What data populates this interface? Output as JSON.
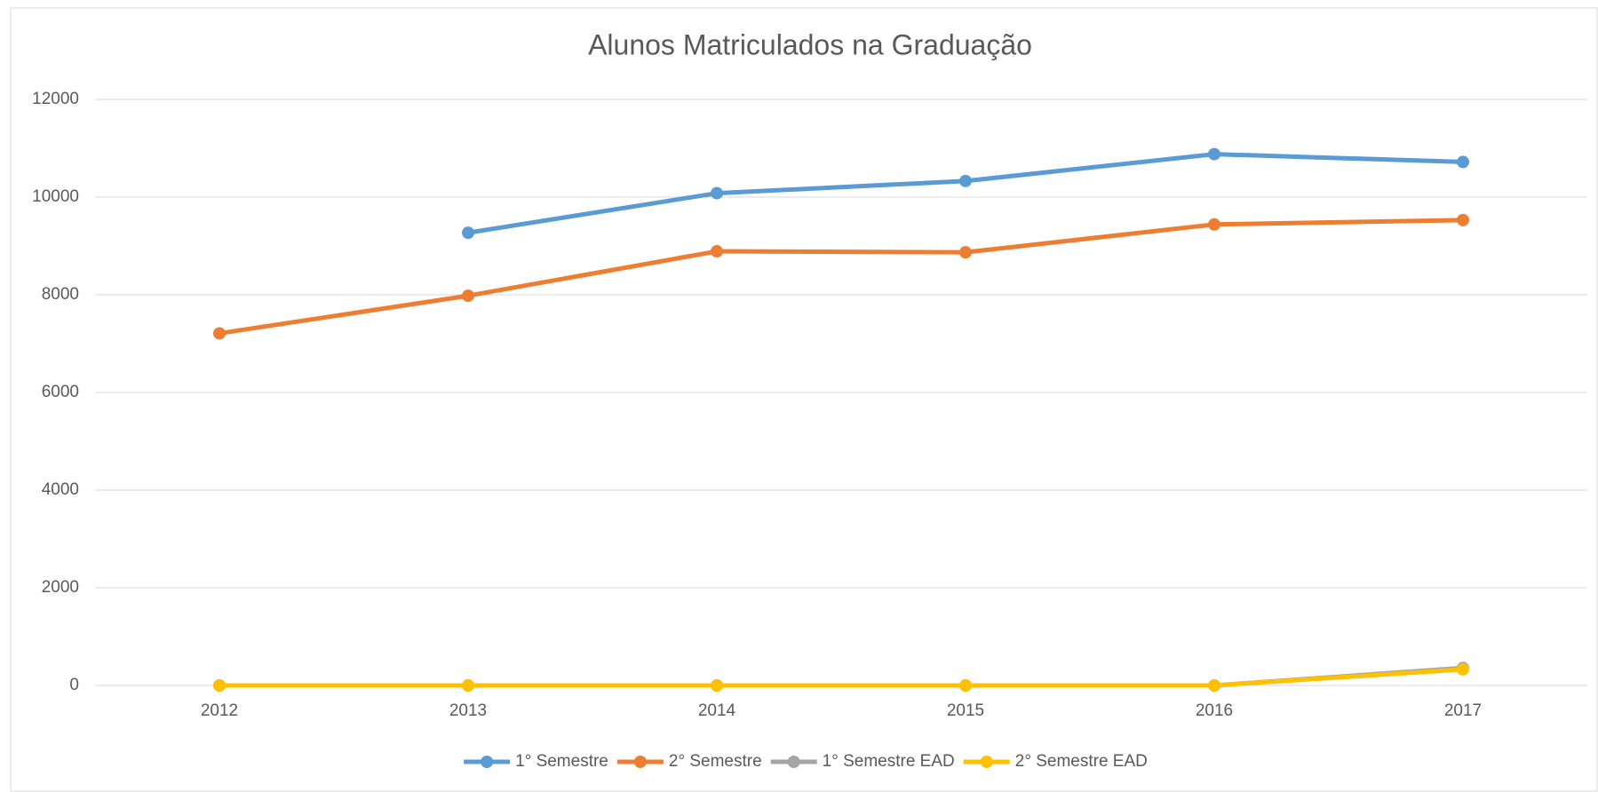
{
  "chart_data": {
    "type": "line",
    "title": "Alunos Matriculados na Graduação",
    "categories": [
      "2012",
      "2013",
      "2014",
      "2015",
      "2016",
      "2017"
    ],
    "series": [
      {
        "name": "1° Semestre",
        "color": "#5b9bd5",
        "values": [
          null,
          9270,
          10080,
          10330,
          10880,
          10720
        ]
      },
      {
        "name": "2° Semestre",
        "color": "#ed7d31",
        "values": [
          7210,
          7980,
          8890,
          8870,
          9440,
          9530
        ]
      },
      {
        "name": "1° Semestre EAD",
        "color": "#a5a5a5",
        "values": [
          0,
          0,
          0,
          0,
          0,
          360
        ]
      },
      {
        "name": "2° Semestre EAD",
        "color": "#ffc000",
        "values": [
          0,
          0,
          0,
          0,
          0,
          330
        ]
      }
    ],
    "ylim": [
      0,
      12000
    ],
    "yticks": [
      0,
      2000,
      4000,
      6000,
      8000,
      10000,
      12000
    ],
    "grid": true,
    "legend": "bottom"
  }
}
